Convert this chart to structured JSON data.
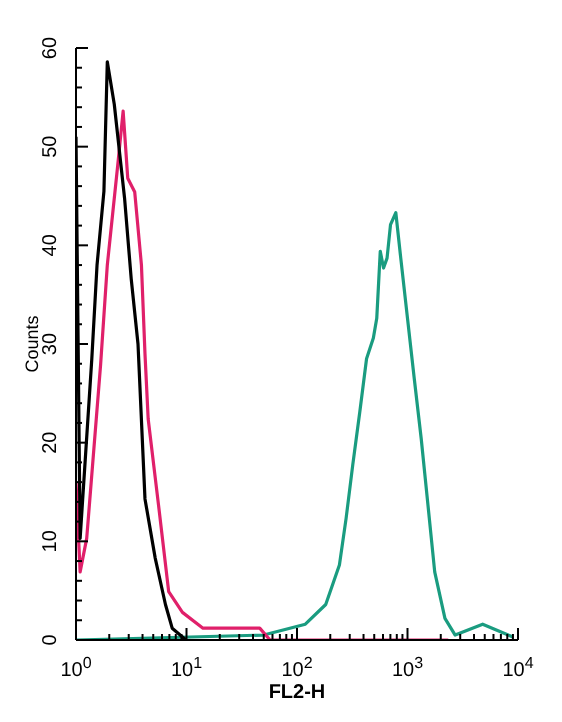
{
  "chart_data": {
    "type": "line",
    "xlabel": "FL2-H",
    "ylabel": "Counts",
    "log": "x",
    "xlim": [
      1,
      10000
    ],
    "ylim": [
      0,
      60
    ],
    "xticks": [
      {
        "value": 1,
        "label": "10$^{0}$"
      },
      {
        "value": 2,
        "label": null
      },
      {
        "value": 3,
        "label": null
      },
      {
        "value": 4,
        "label": null
      },
      {
        "value": 5,
        "label": null
      },
      {
        "value": 6,
        "label": null
      },
      {
        "value": 7,
        "label": null
      },
      {
        "value": 8,
        "label": null
      },
      {
        "value": 9,
        "label": null
      },
      {
        "value": 10,
        "label": "10$^{1}$"
      },
      {
        "value": 20,
        "label": null
      },
      {
        "value": 30,
        "label": null
      },
      {
        "value": 40,
        "label": null
      },
      {
        "value": 50,
        "label": null
      },
      {
        "value": 60,
        "label": null
      },
      {
        "value": 70,
        "label": null
      },
      {
        "value": 80,
        "label": null
      },
      {
        "value": 90,
        "label": null
      },
      {
        "value": 100,
        "label": "10$^{2}$"
      },
      {
        "value": 200,
        "label": null
      },
      {
        "value": 300,
        "label": null
      },
      {
        "value": 400,
        "label": null
      },
      {
        "value": 500,
        "label": null
      },
      {
        "value": 600,
        "label": null
      },
      {
        "value": 700,
        "label": null
      },
      {
        "value": 800,
        "label": null
      },
      {
        "value": 900,
        "label": null
      },
      {
        "value": 1000,
        "label": "10$^{3}$"
      },
      {
        "value": 2000,
        "label": null
      },
      {
        "value": 3000,
        "label": null
      },
      {
        "value": 4000,
        "label": null
      },
      {
        "value": 5000,
        "label": null
      },
      {
        "value": 6000,
        "label": null
      },
      {
        "value": 7000,
        "label": null
      },
      {
        "value": 8000,
        "label": null
      },
      {
        "value": 9000,
        "label": null
      },
      {
        "value": 10000,
        "label": "10$^{4}$"
      }
    ],
    "yticks": [
      0,
      {
        "value": 2,
        "label": null
      },
      {
        "value": 4,
        "label": null
      },
      {
        "value": 6,
        "label": null
      },
      {
        "value": 8,
        "label": null
      },
      10,
      {
        "value": 12,
        "label": null
      },
      {
        "value": 14,
        "label": null
      },
      {
        "value": 16,
        "label": null
      },
      {
        "value": 18,
        "label": null
      },
      20,
      {
        "value": 22,
        "label": null
      },
      {
        "value": 24,
        "label": null
      },
      {
        "value": 26,
        "label": null
      },
      {
        "value": 28,
        "label": null
      },
      30,
      {
        "value": 32,
        "label": null
      },
      {
        "value": 34,
        "label": null
      },
      {
        "value": 36,
        "label": null
      },
      {
        "value": 38,
        "label": null
      },
      40,
      {
        "value": 42,
        "label": null
      },
      {
        "value": 44,
        "label": null
      },
      {
        "value": 46,
        "label": null
      },
      {
        "value": 48,
        "label": null
      },
      50,
      {
        "value": 52,
        "label": null
      },
      {
        "value": 54,
        "label": null
      },
      {
        "value": 56,
        "label": null
      },
      {
        "value": 58,
        "label": null
      },
      60
    ],
    "series": [
      {
        "color": "#1a9c80",
        "x": [
          1,
          50,
          119,
          182,
          242,
          278,
          320,
          370,
          426,
          491,
          527,
          567,
          607,
          653,
          702,
          784,
          869,
          1000,
          1151,
          1331,
          1531,
          1763,
          2182,
          2700,
          4790,
          9000
        ],
        "values": [
          0,
          0.5,
          1.6,
          3.6,
          7.6,
          12.3,
          17.8,
          23.1,
          28.5,
          30.6,
          32.6,
          39.4,
          37.7,
          38.7,
          42.1,
          43.3,
          38.7,
          32.6,
          26.5,
          20.4,
          13.7,
          6.9,
          2.2,
          0.5,
          1.6,
          0.3
        ]
      },
      {
        "color": "#e0206a",
        "x": [
          1,
          1.09,
          1.25,
          1.67,
          1.92,
          2.38,
          2.67,
          2.94,
          3.4,
          3.91,
          4.21,
          4.5,
          5.58,
          6.9,
          9.19,
          14.1,
          46,
          57,
          2340
        ],
        "values": [
          16,
          6.9,
          10.3,
          27.9,
          38,
          48,
          53.6,
          46.8,
          45.4,
          38,
          29,
          22.4,
          13.7,
          4.9,
          2.8,
          1.2,
          1.2,
          0,
          0
        ]
      },
      {
        "color": "#000000",
        "x": [
          1,
          1.09,
          1.39,
          1.55,
          1.79,
          1.92,
          2.22,
          2.75,
          3.16,
          3.64,
          4.21,
          5.21,
          6.45,
          7.42,
          9.9
        ],
        "values": [
          51,
          10.3,
          28.5,
          38,
          45.5,
          58.6,
          54.3,
          44.8,
          36.6,
          30,
          14.3,
          8.3,
          3.6,
          1.2,
          0
        ]
      }
    ]
  }
}
